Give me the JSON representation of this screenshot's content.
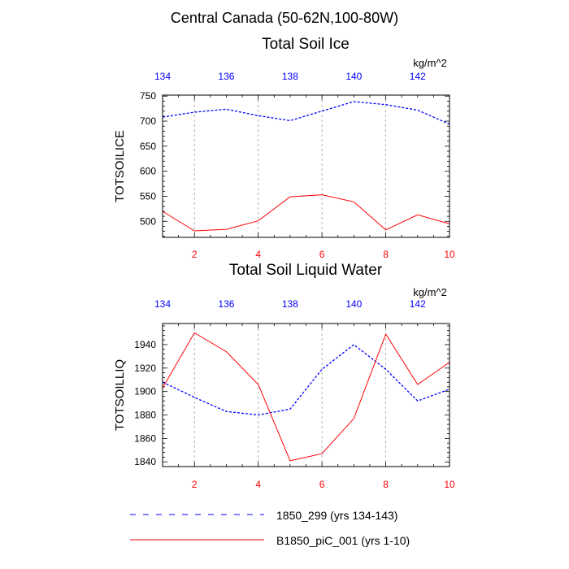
{
  "main_title": "Central Canada (50-62N,100-80W)",
  "colors": {
    "blue": "#0000ff",
    "red": "#ff0000",
    "grid": "#a0a0a0",
    "axis": "#000000"
  },
  "chart_data": [
    {
      "type": "line",
      "title": "Total Soil Ice",
      "ylabel": "TOTSOILICE",
      "units": "kg/m^2",
      "x_bottom": {
        "range": [
          1,
          10
        ],
        "ticks": [
          "2",
          "4",
          "6",
          "8",
          "10"
        ],
        "color": "#ff0000"
      },
      "x_top": {
        "range": [
          134,
          143
        ],
        "ticks": [
          "134",
          "136",
          "138",
          "140",
          "142"
        ],
        "color": "#0000ff"
      },
      "ylim": [
        468,
        752
      ],
      "yticks": [
        "500",
        "550",
        "600",
        "650",
        "700",
        "750"
      ],
      "series": [
        {
          "name": "1850_299 (yrs 134-143)",
          "axis": "top",
          "style": "dashed",
          "color": "#0000ff",
          "x": [
            134,
            135,
            136,
            137,
            138,
            139,
            140,
            141,
            142,
            143
          ],
          "values": [
            708,
            718,
            724,
            711,
            701,
            720,
            739,
            733,
            722,
            694
          ]
        },
        {
          "name": "B1850_piC_001 (yrs 1-10)",
          "axis": "bottom",
          "style": "solid",
          "color": "#ff0000",
          "x": [
            1,
            2,
            3,
            4,
            5,
            6,
            7,
            8,
            9,
            10
          ],
          "values": [
            520,
            481,
            484,
            501,
            549,
            553,
            539,
            483,
            513,
            495
          ]
        }
      ]
    },
    {
      "type": "line",
      "title": "Total Soil Liquid Water",
      "ylabel": "TOTSOILLIQ",
      "units": "kg/m^2",
      "x_bottom": {
        "range": [
          1,
          10
        ],
        "ticks": [
          "2",
          "4",
          "6",
          "8",
          "10"
        ],
        "color": "#ff0000"
      },
      "x_top": {
        "range": [
          134,
          143
        ],
        "ticks": [
          "134",
          "136",
          "138",
          "140",
          "142"
        ],
        "color": "#0000ff"
      },
      "ylim": [
        1836,
        1958
      ],
      "yticks": [
        "1840",
        "1860",
        "1880",
        "1900",
        "1920",
        "1940"
      ],
      "series": [
        {
          "name": "1850_299 (yrs 134-143)",
          "axis": "top",
          "style": "dashed",
          "color": "#0000ff",
          "x": [
            134,
            135,
            136,
            137,
            138,
            139,
            140,
            141,
            142,
            143
          ],
          "values": [
            1908,
            1895,
            1883,
            1880,
            1885,
            1919,
            1940,
            1919,
            1892,
            1902
          ]
        },
        {
          "name": "B1850_piC_001 (yrs 1-10)",
          "axis": "bottom",
          "style": "solid",
          "color": "#ff0000",
          "x": [
            1,
            2,
            3,
            4,
            5,
            6,
            7,
            8,
            9,
            10
          ],
          "values": [
            1903,
            1950,
            1934,
            1906,
            1841,
            1847,
            1877,
            1949,
            1906,
            1925
          ]
        }
      ]
    }
  ],
  "legend": [
    {
      "label": "1850_299 (yrs 134-143)",
      "style": "dashed",
      "color": "#0000ff"
    },
    {
      "label": "B1850_piC_001 (yrs 1-10)",
      "style": "solid",
      "color": "#ff0000"
    }
  ]
}
